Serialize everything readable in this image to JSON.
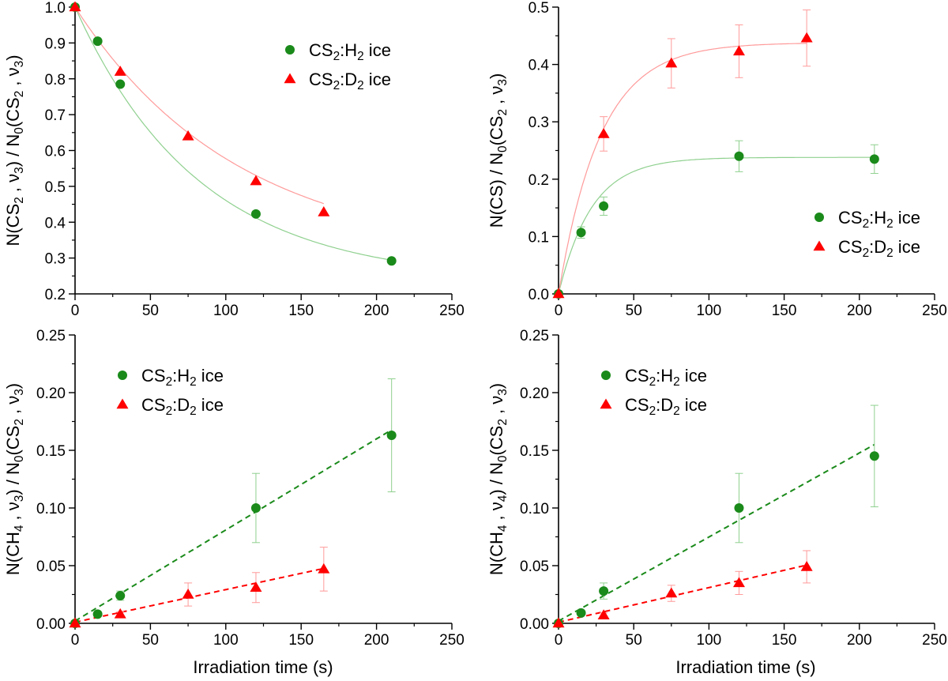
{
  "figure": {
    "xlabel": "Irradiation time (s)"
  },
  "colors": {
    "h2_series": "#1a8a1a",
    "d2_series": "#ff0000",
    "h2_fit": "#8fd08f",
    "d2_fit": "#ff9a9a"
  },
  "chart_data": [
    {
      "type": "scatter",
      "panel": "top-left",
      "ylabel": "N(CS2 , ν3) / N0(CS2 , ν3)",
      "xlabel": "",
      "xlim": [
        0,
        250
      ],
      "ylim": [
        0.2,
        1.0
      ],
      "xticks": [
        0,
        50,
        100,
        150,
        200,
        250
      ],
      "yticks": [
        0.2,
        0.3,
        0.4,
        0.5,
        0.6,
        0.7,
        0.8,
        0.9,
        1.0
      ],
      "ytick_decimals": 1,
      "grid": false,
      "legend_placement": "top-right",
      "fit": "exponential-decay",
      "series": [
        {
          "name": "CS2:H2 ice",
          "marker": "circle",
          "x": [
            0,
            15,
            30,
            120,
            210
          ],
          "y": [
            1.0,
            0.905,
            0.785,
            0.423,
            0.292
          ],
          "yerr": [
            0,
            0,
            0,
            0,
            0
          ]
        },
        {
          "name": "CS2:D2 ice",
          "marker": "triangle",
          "x": [
            0,
            30,
            75,
            120,
            165
          ],
          "y": [
            1.0,
            0.82,
            0.64,
            0.515,
            0.428
          ],
          "yerr": [
            0,
            0,
            0,
            0,
            0
          ]
        }
      ]
    },
    {
      "type": "scatter",
      "panel": "top-right",
      "ylabel": "N(CS) / N0(CS2 , ν3)",
      "xlabel": "",
      "xlim": [
        0,
        250
      ],
      "ylim": [
        0.0,
        0.5
      ],
      "xticks": [
        0,
        50,
        100,
        150,
        200,
        250
      ],
      "yticks": [
        0.0,
        0.1,
        0.2,
        0.3,
        0.4,
        0.5
      ],
      "ytick_decimals": 1,
      "grid": false,
      "legend_placement": "bottom-right",
      "fit": "exponential-rise",
      "series": [
        {
          "name": "CS2:H2 ice",
          "marker": "circle",
          "x": [
            0,
            15,
            30,
            120,
            210
          ],
          "y": [
            0.0,
            0.107,
            0.153,
            0.24,
            0.235
          ],
          "yerr": [
            0,
            0.01,
            0.016,
            0.027,
            0.025
          ]
        },
        {
          "name": "CS2:D2 ice",
          "marker": "triangle",
          "x": [
            0,
            30,
            75,
            120,
            165
          ],
          "y": [
            0.0,
            0.279,
            0.402,
            0.423,
            0.446
          ],
          "yerr": [
            0,
            0.03,
            0.043,
            0.046,
            0.049
          ]
        }
      ]
    },
    {
      "type": "scatter",
      "panel": "bottom-left",
      "ylabel": "N(CH4 , ν3) / N0(CS2 , ν3)",
      "xlabel": "Irradiation time (s)",
      "xlim": [
        0,
        250
      ],
      "ylim": [
        0.0,
        0.25
      ],
      "xticks": [
        0,
        50,
        100,
        150,
        200,
        250
      ],
      "yticks": [
        0.0,
        0.05,
        0.1,
        0.15,
        0.2,
        0.25
      ],
      "ytick_decimals": 2,
      "grid": false,
      "legend_placement": "top-left",
      "fit": "linear-dashed",
      "series": [
        {
          "name": "CS2:H2 ice",
          "marker": "circle",
          "x": [
            0,
            15,
            30,
            120,
            210
          ],
          "y": [
            0.0,
            0.008,
            0.024,
            0.1,
            0.163
          ],
          "yerr": [
            0,
            0.002,
            0.004,
            0.03,
            0.049
          ]
        },
        {
          "name": "CS2:D2 ice",
          "marker": "triangle",
          "x": [
            0,
            30,
            75,
            120,
            165
          ],
          "y": [
            0.0,
            0.008,
            0.025,
            0.031,
            0.047
          ],
          "yerr": [
            0,
            0.002,
            0.01,
            0.013,
            0.019
          ]
        }
      ]
    },
    {
      "type": "scatter",
      "panel": "bottom-right",
      "ylabel": "N(CH4 , ν4) / N0(CS2 , ν3)",
      "xlabel": "Irradiation time (s)",
      "xlim": [
        0,
        250
      ],
      "ylim": [
        0.0,
        0.25
      ],
      "xticks": [
        0,
        50,
        100,
        150,
        200,
        250
      ],
      "yticks": [
        0.0,
        0.05,
        0.1,
        0.15,
        0.2,
        0.25
      ],
      "ytick_decimals": 2,
      "grid": false,
      "legend_placement": "top-left",
      "fit": "linear-dashed",
      "series": [
        {
          "name": "CS2:H2 ice",
          "marker": "circle",
          "x": [
            0,
            15,
            30,
            120,
            210
          ],
          "y": [
            0.0,
            0.009,
            0.028,
            0.1,
            0.145
          ],
          "yerr": [
            0,
            0.002,
            0.007,
            0.03,
            0.044
          ]
        },
        {
          "name": "CS2:D2 ice",
          "marker": "triangle",
          "x": [
            0,
            30,
            75,
            120,
            165
          ],
          "y": [
            0.0,
            0.007,
            0.026,
            0.035,
            0.049
          ],
          "yerr": [
            0,
            0.002,
            0.007,
            0.01,
            0.014
          ]
        }
      ]
    }
  ]
}
